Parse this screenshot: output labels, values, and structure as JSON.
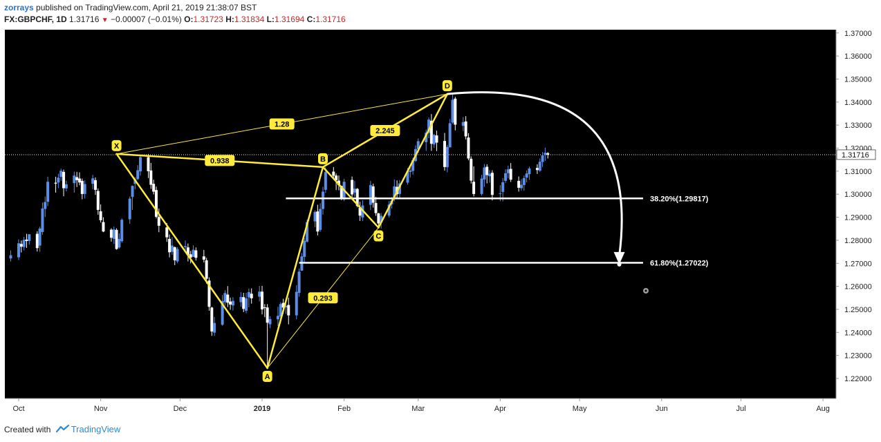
{
  "header": {
    "author": "zorrays",
    "published_text": "published on TradingView.com, April 21, 2019 21:38:07 BST",
    "symbol": "FX:GBPCHF, 1D",
    "last": "1.31716",
    "change": "−0.00007 (−0.01%)",
    "o_label": "O:",
    "o_value": "1.31723",
    "h_label": "H:",
    "h_value": "1.31834",
    "l_label": "L:",
    "l_value": "1.31694",
    "c_label": "C:",
    "c_value": "1.31716"
  },
  "footer": {
    "created_with": "Created with",
    "brand": "TradingView"
  },
  "colors": {
    "background": "#000000",
    "candle_up": "#5b8ee6",
    "candle_down": "#ffffff",
    "pattern": "#ffeb3b",
    "level_line": "#ffffff"
  },
  "chart_data": {
    "type": "candlestick",
    "symbol": "FX:GBPCHF",
    "interval": "1D",
    "ylim": [
      1.215,
      1.372
    ],
    "y_ticks": [
      "1.22000",
      "1.23000",
      "1.24000",
      "1.25000",
      "1.26000",
      "1.27000",
      "1.28000",
      "1.29000",
      "1.30000",
      "1.31000",
      "1.32000",
      "1.33000",
      "1.34000",
      "1.35000",
      "1.36000",
      "1.37000"
    ],
    "x_ticks": [
      "Oct",
      "Nov",
      "Dec",
      "2019",
      "Feb",
      "Mar",
      "Apr",
      "May",
      "Jun",
      "Jul",
      "Aug"
    ],
    "last_price_label": "1.31716",
    "last_price": 1.31716,
    "pattern_points": [
      {
        "label": "X",
        "date": "2018-11-07",
        "price": 1.3175
      },
      {
        "label": "A",
        "date": "2019-01-03",
        "price": 1.2245
      },
      {
        "label": "B",
        "date": "2019-01-24",
        "price": 1.3118
      },
      {
        "label": "C",
        "date": "2019-02-14",
        "price": 1.2855
      },
      {
        "label": "D",
        "date": "2019-03-12",
        "price": 1.3435
      }
    ],
    "ratios": [
      {
        "label": "0.938",
        "from": "X",
        "to": "B"
      },
      {
        "label": "1.28",
        "from": "X",
        "to": "D"
      },
      {
        "label": "0.293",
        "from": "A",
        "to": "C"
      },
      {
        "label": "2.245",
        "from": "B",
        "to": "D"
      }
    ],
    "levels": [
      {
        "label": "38.20%(1.29817)",
        "price": 1.29817,
        "start": "2019-01-10",
        "end": "2019-05-25"
      },
      {
        "label": "61.80%(1.27022)",
        "price": 1.27022,
        "start": "2019-01-15",
        "end": "2019-05-25"
      }
    ],
    "projection_arrow": {
      "from": "D",
      "to_date": "2019-05-16",
      "to_price": 1.2695
    },
    "candles": [
      [
        "2018-09-28",
        1.2721,
        1.2756,
        1.2708,
        1.2735
      ],
      [
        "2018-10-01",
        1.2726,
        1.2804,
        1.2714,
        1.2787
      ],
      [
        "2018-10-02",
        1.2784,
        1.2799,
        1.2747,
        1.2772
      ],
      [
        "2018-10-03",
        1.2771,
        1.2815,
        1.2756,
        1.2802
      ],
      [
        "2018-10-04",
        1.2803,
        1.2828,
        1.2767,
        1.2797
      ],
      [
        "2018-10-05",
        1.2797,
        1.2827,
        1.2781,
        1.2826
      ],
      [
        "2018-10-08",
        1.2828,
        1.2839,
        1.2751,
        1.2766
      ],
      [
        "2018-10-09",
        1.2777,
        1.2859,
        1.275,
        1.2851
      ],
      [
        "2018-10-10",
        1.2836,
        1.2964,
        1.2824,
        1.2938
      ],
      [
        "2018-10-11",
        1.2936,
        1.299,
        1.2901,
        1.2966
      ],
      [
        "2018-10-12",
        1.2967,
        1.3076,
        1.2948,
        1.3054
      ],
      [
        "2018-10-15",
        1.305,
        1.3076,
        1.3007,
        1.3046
      ],
      [
        "2018-10-16",
        1.3051,
        1.3089,
        1.3026,
        1.3072
      ],
      [
        "2018-10-17",
        1.3075,
        1.3111,
        1.3058,
        1.3102
      ],
      [
        "2018-10-18",
        1.3097,
        1.3107,
        1.2991,
        1.3026
      ],
      [
        "2018-10-19",
        1.3025,
        1.3059,
        1.3012,
        1.3043
      ],
      [
        "2018-10-22",
        1.3048,
        1.3098,
        1.3007,
        1.3081
      ],
      [
        "2018-10-23",
        1.3074,
        1.3097,
        1.3031,
        1.3061
      ],
      [
        "2018-10-24",
        1.3068,
        1.3095,
        1.3039,
        1.3051
      ],
      [
        "2018-10-25",
        1.3058,
        1.3068,
        1.2978,
        1.3001
      ],
      [
        "2018-10-26",
        1.3001,
        1.306,
        1.2981,
        1.3044
      ],
      [
        "2018-10-29",
        1.3045,
        1.3084,
        1.3022,
        1.3069
      ],
      [
        "2018-10-30",
        1.3061,
        1.3073,
        1.2997,
        1.3019
      ],
      [
        "2018-10-31",
        1.3014,
        1.3025,
        1.2911,
        1.2932
      ],
      [
        "2018-11-01",
        1.2926,
        1.2956,
        1.2877,
        1.2887
      ],
      [
        "2018-11-02",
        1.2879,
        1.29,
        1.2835,
        1.2838
      ],
      [
        "2018-11-05",
        1.2846,
        1.2852,
        1.2794,
        1.2811
      ],
      [
        "2018-11-06",
        1.2806,
        1.286,
        1.2784,
        1.2847
      ],
      [
        "2018-11-07",
        1.2845,
        1.2852,
        1.2759,
        1.2762
      ],
      [
        "2018-11-08",
        1.2769,
        1.283,
        1.2764,
        1.2806
      ],
      [
        "2018-11-09",
        1.2796,
        1.2895,
        1.279,
        1.2889
      ],
      [
        "2018-11-12",
        1.2891,
        1.299,
        1.2871,
        1.2981
      ],
      [
        "2018-11-13",
        1.2988,
        1.3038,
        1.2932,
        1.3036
      ],
      [
        "2018-11-14",
        1.3045,
        1.3074,
        1.3021,
        1.3065
      ],
      [
        "2018-11-15",
        1.3066,
        1.3126,
        1.3061,
        1.3104
      ],
      [
        "2018-11-16",
        1.3099,
        1.3166,
        1.3081,
        1.3161
      ],
      [
        "2018-11-19",
        1.3161,
        1.3175,
        1.307,
        1.31
      ],
      [
        "2018-11-20",
        1.3103,
        1.3136,
        1.3023,
        1.3041
      ],
      [
        "2018-11-21",
        1.3045,
        1.3063,
        1.2999,
        1.3011
      ],
      [
        "2018-11-22",
        1.3018,
        1.3033,
        1.2895,
        1.2902
      ],
      [
        "2018-11-23",
        1.2901,
        1.2938,
        1.2835,
        1.2863
      ],
      [
        "2018-11-26",
        1.2856,
        1.2875,
        1.2793,
        1.2813
      ],
      [
        "2018-11-27",
        1.2806,
        1.2825,
        1.2726,
        1.2748
      ],
      [
        "2018-11-28",
        1.275,
        1.2814,
        1.2737,
        1.2777
      ],
      [
        "2018-11-29",
        1.277,
        1.2773,
        1.2692,
        1.2713
      ],
      [
        "2018-11-30",
        1.2708,
        1.277,
        1.2701,
        1.2762
      ],
      [
        "2018-12-03",
        1.277,
        1.2799,
        1.2754,
        1.2775
      ],
      [
        "2018-12-04",
        1.2769,
        1.2786,
        1.2708,
        1.2737
      ],
      [
        "2018-12-05",
        1.2739,
        1.2754,
        1.27,
        1.2725
      ],
      [
        "2018-12-06",
        1.2728,
        1.2778,
        1.2727,
        1.2759
      ],
      [
        "2018-12-07",
        1.2756,
        1.2769,
        1.2712,
        1.2724
      ],
      [
        "2018-12-10",
        1.273,
        1.2758,
        1.2704,
        1.2716
      ],
      [
        "2018-12-11",
        1.2713,
        1.2724,
        1.2612,
        1.2633
      ],
      [
        "2018-12-12",
        1.2625,
        1.2639,
        1.2494,
        1.2511
      ],
      [
        "2018-12-13",
        1.2508,
        1.2511,
        1.2385,
        1.2404
      ],
      [
        "2018-12-14",
        1.2399,
        1.2467,
        1.2385,
        1.2441
      ],
      [
        "2018-12-17",
        1.2433,
        1.2562,
        1.2429,
        1.2536
      ],
      [
        "2018-12-18",
        1.2532,
        1.2583,
        1.2516,
        1.2571
      ],
      [
        "2018-12-19",
        1.2564,
        1.2601,
        1.251,
        1.2529
      ],
      [
        "2018-12-20",
        1.2534,
        1.2551,
        1.2498,
        1.2521
      ],
      [
        "2018-12-21",
        1.2517,
        1.2553,
        1.2495,
        1.2537
      ],
      [
        "2018-12-24",
        1.2531,
        1.2575,
        1.2512,
        1.2554
      ],
      [
        "2018-12-25",
        1.2553,
        1.2572,
        1.2488,
        1.2502
      ],
      [
        "2018-12-26",
        1.2494,
        1.2572,
        1.2483,
        1.2548
      ],
      [
        "2018-12-27",
        1.2552,
        1.2591,
        1.2509,
        1.2575
      ],
      [
        "2018-12-28",
        1.2568,
        1.2591,
        1.2525,
        1.2548
      ],
      [
        "2018-12-31",
        1.2555,
        1.2602,
        1.2534,
        1.2577
      ],
      [
        "2019-01-01",
        1.2577,
        1.2602,
        1.2478,
        1.25
      ],
      [
        "2019-01-02",
        1.2509,
        1.2523,
        1.2466,
        1.2508
      ],
      [
        "2019-01-03",
        1.2508,
        1.2523,
        1.2251,
        1.2442
      ],
      [
        "2019-01-04",
        1.2435,
        1.247,
        1.2418,
        1.2458
      ],
      [
        "2019-01-07",
        1.2457,
        1.2511,
        1.2428,
        1.2472
      ],
      [
        "2019-01-08",
        1.2469,
        1.2531,
        1.2438,
        1.2523
      ],
      [
        "2019-01-09",
        1.2528,
        1.2546,
        1.2481,
        1.2508
      ],
      [
        "2019-01-10",
        1.2509,
        1.2532,
        1.248,
        1.2515
      ],
      [
        "2019-01-11",
        1.2519,
        1.2551,
        1.2435,
        1.2474
      ],
      [
        "2019-01-14",
        1.2474,
        1.2605,
        1.2457,
        1.2576
      ],
      [
        "2019-01-15",
        1.2572,
        1.2677,
        1.2555,
        1.2664
      ],
      [
        "2019-01-16",
        1.2668,
        1.2745,
        1.2667,
        1.273
      ],
      [
        "2019-01-17",
        1.2728,
        1.281,
        1.27,
        1.2798
      ],
      [
        "2019-01-18",
        1.2794,
        1.2889,
        1.279,
        1.2879
      ],
      [
        "2019-01-21",
        1.2882,
        1.293,
        1.2857,
        1.2923
      ],
      [
        "2019-01-22",
        1.2925,
        1.2954,
        1.2821,
        1.2838
      ],
      [
        "2019-01-23",
        1.2845,
        1.2961,
        1.2837,
        1.2936
      ],
      [
        "2019-01-24",
        1.2936,
        1.3032,
        1.2911,
        1.3011
      ],
      [
        "2019-01-25",
        1.3019,
        1.3118,
        1.3005,
        1.3096
      ],
      [
        "2019-01-28",
        1.3098,
        1.3118,
        1.3066,
        1.308
      ],
      [
        "2019-01-29",
        1.3081,
        1.309,
        1.3018,
        1.3061
      ],
      [
        "2019-01-30",
        1.3059,
        1.3081,
        1.3017,
        1.3039
      ],
      [
        "2019-01-31",
        1.3036,
        1.3037,
        1.2974,
        1.2981
      ],
      [
        "2019-02-01",
        1.2977,
        1.3067,
        1.297,
        1.3054
      ],
      [
        "2019-02-04",
        1.3062,
        1.3077,
        1.2984,
        1.2999
      ],
      [
        "2019-02-05",
        1.3007,
        1.3058,
        1.2988,
        1.3024
      ],
      [
        "2019-02-06",
        1.3023,
        1.3027,
        1.2943,
        1.2949
      ],
      [
        "2019-02-07",
        1.2941,
        1.2967,
        1.2884,
        1.2907
      ],
      [
        "2019-02-08",
        1.2899,
        1.2974,
        1.2883,
        1.2951
      ],
      [
        "2019-02-11",
        1.2954,
        1.3058,
        1.2931,
        1.304
      ],
      [
        "2019-02-12",
        1.3034,
        1.3046,
        1.2942,
        1.2963
      ],
      [
        "2019-02-13",
        1.2962,
        1.2989,
        1.2906,
        1.2918
      ],
      [
        "2019-02-14",
        1.2917,
        1.2919,
        1.2855,
        1.2873
      ],
      [
        "2019-02-15",
        1.2878,
        1.2918,
        1.2851,
        1.2906
      ],
      [
        "2019-02-18",
        1.2907,
        1.297,
        1.2899,
        1.2955
      ],
      [
        "2019-02-19",
        1.2956,
        1.2988,
        1.2938,
        1.2972
      ],
      [
        "2019-02-20",
        1.2979,
        1.3064,
        1.2969,
        1.3034
      ],
      [
        "2019-02-21",
        1.3032,
        1.306,
        1.2979,
        1.3
      ],
      [
        "2019-02-22",
        1.3001,
        1.3061,
        1.2985,
        1.3047
      ],
      [
        "2019-02-25",
        1.305,
        1.3114,
        1.3041,
        1.3099
      ],
      [
        "2019-02-26",
        1.3097,
        1.3118,
        1.3073,
        1.3103
      ],
      [
        "2019-02-27",
        1.3101,
        1.3158,
        1.3085,
        1.3148
      ],
      [
        "2019-02-28",
        1.3144,
        1.3212,
        1.314,
        1.3196
      ],
      [
        "2019-03-01",
        1.3195,
        1.3242,
        1.318,
        1.323
      ],
      [
        "2019-03-04",
        1.3226,
        1.3281,
        1.3188,
        1.3267
      ],
      [
        "2019-03-05",
        1.3266,
        1.3333,
        1.3243,
        1.3324
      ],
      [
        "2019-03-06",
        1.3319,
        1.3348,
        1.3188,
        1.3219
      ],
      [
        "2019-03-07",
        1.3216,
        1.3262,
        1.3201,
        1.3258
      ],
      [
        "2019-03-08",
        1.3255,
        1.3276,
        1.3187,
        1.3224
      ],
      [
        "2019-03-11",
        1.3231,
        1.3266,
        1.3102,
        1.3118
      ],
      [
        "2019-03-12",
        1.3117,
        1.3214,
        1.3095,
        1.3205
      ],
      [
        "2019-03-13",
        1.3204,
        1.3326,
        1.3202,
        1.3308
      ],
      [
        "2019-03-14",
        1.3311,
        1.3435,
        1.3306,
        1.341
      ],
      [
        "2019-03-15",
        1.3415,
        1.3423,
        1.3277,
        1.3302
      ],
      [
        "2019-03-18",
        1.3297,
        1.3335,
        1.3274,
        1.3313
      ],
      [
        "2019-03-19",
        1.3316,
        1.3339,
        1.3238,
        1.3251
      ],
      [
        "2019-03-20",
        1.3246,
        1.3265,
        1.3147,
        1.3155
      ],
      [
        "2019-03-21",
        1.3154,
        1.3164,
        1.3046,
        1.3059
      ],
      [
        "2019-03-22",
        1.3054,
        1.3121,
        1.299,
        1.3001
      ],
      [
        "2019-03-25",
        1.3001,
        1.3084,
        1.2994,
        1.3068
      ],
      [
        "2019-03-26",
        1.3064,
        1.3131,
        1.3032,
        1.3116
      ],
      [
        "2019-03-27",
        1.3119,
        1.313,
        1.3047,
        1.3083
      ],
      [
        "2019-03-28",
        1.3078,
        1.3105,
        1.305,
        1.3089
      ],
      [
        "2019-03-29",
        1.3093,
        1.3104,
        1.2973,
        1.2997
      ],
      [
        "2019-04-01",
        1.3003,
        1.3039,
        1.297,
        1.3004
      ],
      [
        "2019-04-02",
        1.301,
        1.307,
        1.2969,
        1.3052
      ],
      [
        "2019-04-03",
        1.3058,
        1.3108,
        1.3049,
        1.3091
      ],
      [
        "2019-04-04",
        1.3091,
        1.3124,
        1.3069,
        1.3108
      ],
      [
        "2019-04-05",
        1.311,
        1.3135,
        1.3053,
        1.3063
      ],
      [
        "2019-04-08",
        1.3058,
        1.3077,
        1.3011,
        1.3028
      ],
      [
        "2019-04-09",
        1.3026,
        1.3066,
        1.3015,
        1.3041
      ],
      [
        "2019-04-10",
        1.304,
        1.3081,
        1.3015,
        1.307
      ],
      [
        "2019-04-11",
        1.3072,
        1.3103,
        1.3051,
        1.309
      ],
      [
        "2019-04-12",
        1.3087,
        1.312,
        1.3062,
        1.3112
      ],
      [
        "2019-04-15",
        1.3114,
        1.313,
        1.3088,
        1.3105
      ],
      [
        "2019-04-16",
        1.3102,
        1.3155,
        1.3097,
        1.3141
      ],
      [
        "2019-04-17",
        1.314,
        1.3183,
        1.3118,
        1.3169
      ],
      [
        "2019-04-18",
        1.3171,
        1.3202,
        1.3145,
        1.318
      ],
      [
        "2019-04-19",
        1.3178,
        1.3183,
        1.3155,
        1.3172
      ]
    ]
  }
}
